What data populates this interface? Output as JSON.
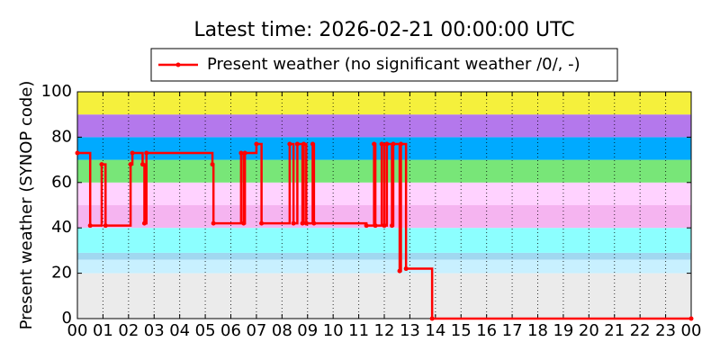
{
  "chart_data": {
    "type": "line",
    "drawstyle": "steps-post",
    "title": "Latest time: 2026-02-21 00:00:00 UTC",
    "y_label": "Present weather (SYNOP code)",
    "xlim": [
      0,
      24
    ],
    "ylim": [
      0,
      100
    ],
    "yticks": [
      0,
      20,
      40,
      60,
      80,
      100
    ],
    "xticks": [
      {
        "value": 0,
        "label": "00"
      },
      {
        "value": 1,
        "label": "01"
      },
      {
        "value": 2,
        "label": "02"
      },
      {
        "value": 3,
        "label": "03"
      },
      {
        "value": 4,
        "label": "04"
      },
      {
        "value": 5,
        "label": "05"
      },
      {
        "value": 6,
        "label": "06"
      },
      {
        "value": 7,
        "label": "07"
      },
      {
        "value": 8,
        "label": "08"
      },
      {
        "value": 9,
        "label": "09"
      },
      {
        "value": 10,
        "label": "10"
      },
      {
        "value": 11,
        "label": "11"
      },
      {
        "value": 12,
        "label": "12"
      },
      {
        "value": 13,
        "label": "13"
      },
      {
        "value": 14,
        "label": "14"
      },
      {
        "value": 15,
        "label": "15"
      },
      {
        "value": 16,
        "label": "16"
      },
      {
        "value": 17,
        "label": "17"
      },
      {
        "value": 18,
        "label": "18"
      },
      {
        "value": 19,
        "label": "19"
      },
      {
        "value": 20,
        "label": "20"
      },
      {
        "value": 21,
        "label": "21"
      },
      {
        "value": 22,
        "label": "22"
      },
      {
        "value": 23,
        "label": "23"
      },
      {
        "value": 24,
        "label": "00"
      }
    ],
    "grid": true,
    "legend": "top",
    "bands": [
      {
        "from": 0,
        "to": 20,
        "color": "#ebebeb"
      },
      {
        "from": 20,
        "to": 26,
        "color": "#c8f0ff"
      },
      {
        "from": 26,
        "to": 29,
        "color": "#a0d8f0"
      },
      {
        "from": 29,
        "to": 40,
        "color": "#8cffff"
      },
      {
        "from": 40,
        "to": 50,
        "color": "#f5b4f0"
      },
      {
        "from": 50,
        "to": 60,
        "color": "#ffd2ff"
      },
      {
        "from": 60,
        "to": 70,
        "color": "#78e678"
      },
      {
        "from": 70,
        "to": 80,
        "color": "#00aaff"
      },
      {
        "from": 80,
        "to": 90,
        "color": "#b478ec"
      },
      {
        "from": 90,
        "to": 100,
        "color": "#f5f03c"
      }
    ],
    "series": [
      {
        "name": "Present weather (no significant weather /0/, -)",
        "color": "#ff0000",
        "x": [
          0,
          0.5,
          0.95,
          1.1,
          2.08,
          2.15,
          2.55,
          2.62,
          2.7,
          5.28,
          5.32,
          6.4,
          6.5,
          6.55,
          7.0,
          7.2,
          8.3,
          8.45,
          8.6,
          8.8,
          8.85,
          8.95,
          9.2,
          9.25,
          11.3,
          11.6,
          11.65,
          11.9,
          12.0,
          12.1,
          12.3,
          12.35,
          12.6,
          12.65,
          12.85,
          13.87,
          24
        ],
        "values": [
          73,
          41,
          68,
          41,
          68,
          73,
          68,
          42,
          73,
          68,
          42,
          73,
          42,
          73,
          77,
          42,
          77,
          42,
          77,
          42,
          77,
          42,
          77,
          42,
          41,
          77,
          41,
          77,
          41,
          77,
          41,
          77,
          21,
          77,
          22,
          0,
          0
        ]
      }
    ]
  }
}
